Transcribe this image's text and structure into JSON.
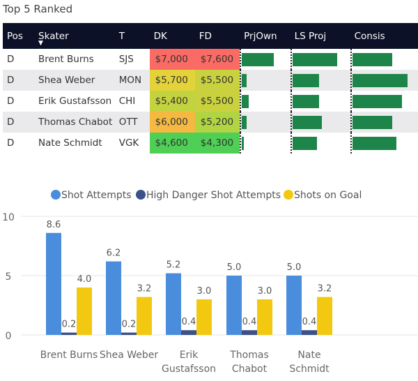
{
  "table": {
    "title": "Top 5 Ranked",
    "headers": [
      "Pos",
      "Skater",
      "T",
      "DK",
      "FD",
      "PrjOwn",
      "LS Proj",
      "Consis"
    ],
    "sort_icon": "▼",
    "rows": [
      {
        "pos": "D",
        "skater": "Brent Burns",
        "team": "SJS",
        "dk": "$7,000",
        "fd": "$7,600",
        "dk_color": "#f96b64",
        "fd_color": "#f96b64",
        "prjown": 0.7,
        "lsproj": 0.75,
        "consis": 0.6
      },
      {
        "pos": "D",
        "skater": "Shea Weber",
        "team": "MON",
        "dk": "$5,700",
        "fd": "$5,500",
        "dk_color": "#e4d23a",
        "fd_color": "#c9d23e",
        "prjown": 0.11,
        "lsproj": 0.45,
        "consis": 0.84
      },
      {
        "pos": "D",
        "skater": "Erik Gustafsson",
        "team": "CHI",
        "dk": "$5,400",
        "fd": "$5,500",
        "dk_color": "#c3d33f",
        "fd_color": "#c9d23e",
        "prjown": 0.15,
        "lsproj": 0.45,
        "consis": 0.75
      },
      {
        "pos": "D",
        "skater": "Thomas Chabot",
        "team": "OTT",
        "dk": "$6,000",
        "fd": "$5,200",
        "dk_color": "#f5b942",
        "fd_color": "#b1d443",
        "prjown": 0.11,
        "lsproj": 0.49,
        "consis": 0.6
      },
      {
        "pos": "D",
        "skater": "Nate Schmidt",
        "team": "VGK",
        "dk": "$4,600",
        "fd": "$4,300",
        "dk_color": "#4fcf55",
        "fd_color": "#4fcf55",
        "prjown": 0.05,
        "lsproj": 0.41,
        "consis": 0.67
      }
    ]
  },
  "chart_data": {
    "type": "bar",
    "categories": [
      [
        "Brent Burns"
      ],
      [
        "Shea Weber"
      ],
      [
        "Erik",
        "Gustafsson"
      ],
      [
        "Thomas",
        "Chabot"
      ],
      [
        "Nate",
        "Schmidt"
      ]
    ],
    "series": [
      {
        "name": "Shot Attempts",
        "color": "#4a8ddc",
        "values": [
          8.6,
          6.2,
          5.2,
          5.0,
          5.0
        ],
        "labels": [
          "8.6",
          "6.2",
          "5.2",
          "5.0",
          "5.0"
        ]
      },
      {
        "name": "High Danger Shot Attempts",
        "color": "#3d5189",
        "values": [
          0.2,
          0.2,
          0.4,
          0.4,
          0.4
        ],
        "labels": [
          "0.2",
          "0.2",
          "0.4",
          "0.4",
          "0.4"
        ]
      },
      {
        "name": "Shots on Goal",
        "color": "#f2c811",
        "values": [
          4.0,
          3.2,
          3.0,
          3.0,
          3.2
        ],
        "labels": [
          "4.0",
          "3.2",
          "3.0",
          "3.0",
          "3.2"
        ]
      }
    ],
    "yticks": [
      "0",
      "5",
      "10"
    ],
    "ylim": [
      0,
      10
    ],
    "legend": "top"
  }
}
